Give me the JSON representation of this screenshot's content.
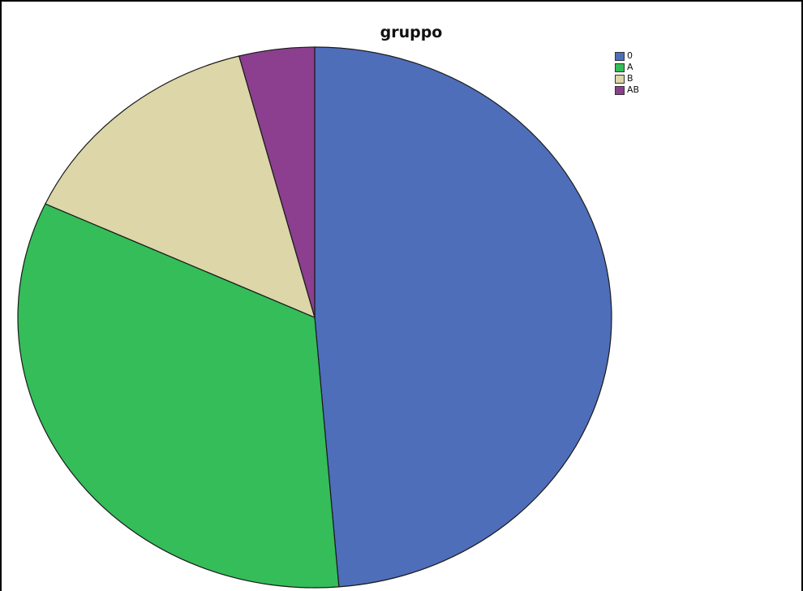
{
  "chart_data": {
    "type": "pie",
    "title": "gruppo",
    "categories": [
      "0",
      "A",
      "B",
      "AB"
    ],
    "values": [
      48.7,
      33.2,
      14.0,
      4.1
    ],
    "colors": [
      "#4E6EBA",
      "#34BD59",
      "#DCD6A8",
      "#8B3F8E"
    ],
    "start": "12 o'clock",
    "direction": "clockwise",
    "legend_position": "top-right"
  }
}
